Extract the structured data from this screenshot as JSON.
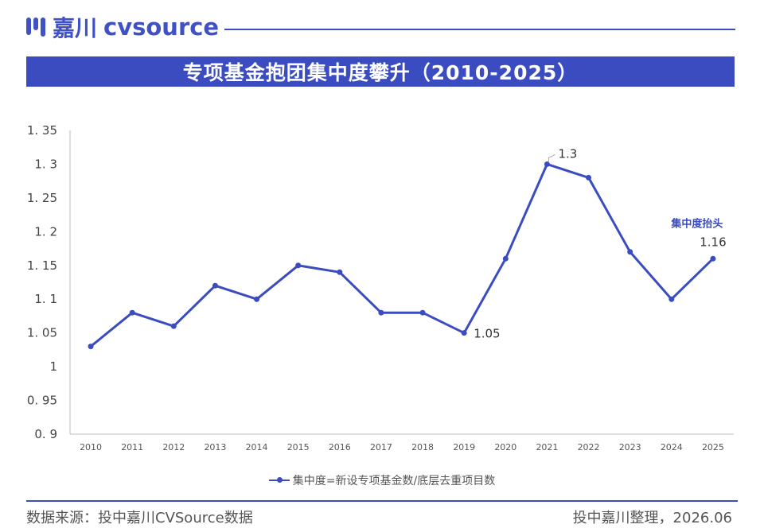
{
  "header": {
    "logo_cn": "嘉川",
    "logo_en": "cvsource",
    "brand_color": "#3b4cc0"
  },
  "title": "专项基金抱团集中度攀升（2010-2025）",
  "chart_data": {
    "type": "line",
    "title": "专项基金抱团集中度攀升（2010-2025）",
    "xlabel": "",
    "ylabel": "",
    "categories": [
      "2010",
      "2011",
      "2012",
      "2013",
      "2014",
      "2015",
      "2016",
      "2017",
      "2018",
      "2019",
      "2020",
      "2021",
      "2022",
      "2023",
      "2024",
      "2025"
    ],
    "series": [
      {
        "name": "集中度=新设专项基金数/底层去重项目数",
        "values": [
          1.03,
          1.08,
          1.06,
          1.12,
          1.1,
          1.15,
          1.14,
          1.08,
          1.08,
          1.05,
          1.16,
          1.3,
          1.28,
          1.17,
          1.1,
          1.16
        ],
        "color": "#3b4cc0"
      }
    ],
    "ylim": [
      0.9,
      1.35
    ],
    "yticks": [
      "0. 9",
      "0. 95",
      "1",
      "1. 05",
      "1. 1",
      "1. 15",
      "1. 2",
      "1. 25",
      "1. 3",
      "1. 35"
    ],
    "data_labels": [
      {
        "category": "2019",
        "text": "1.05"
      },
      {
        "category": "2021",
        "text": "1.3"
      },
      {
        "category": "2025",
        "text": "1.16"
      }
    ],
    "annotations": [
      {
        "category": "2025",
        "text": "集中度抬头"
      }
    ],
    "legend_position": "bottom",
    "grid": false
  },
  "legend_label": "集中度=新设专项基金数/底层去重项目数",
  "footer": {
    "source": "数据来源：投中嘉川CVSource数据",
    "credit": "投中嘉川整理，2026.06"
  }
}
